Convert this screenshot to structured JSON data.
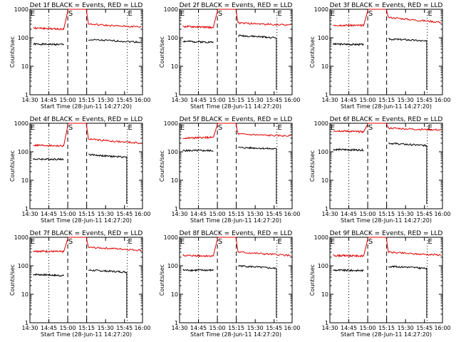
{
  "style": {
    "events_color": "#000000",
    "lld_color": "#e00000"
  },
  "y_ticks": [
    "1",
    "10",
    "100",
    "1000"
  ],
  "x_ticks": [
    "14:30",
    "14:45",
    "15:00",
    "15:15",
    "15:30",
    "15:45",
    "16:00"
  ],
  "marker_labels": [
    "E",
    "S",
    "E"
  ],
  "chart_data": [
    {
      "type": "line",
      "title": "Det 1f BLACK = Events, RED = LLD",
      "xlabel": "Start Time (28-Jun-11 14:27:20)",
      "ylabel": "Counts/sec",
      "y_scale": "log",
      "ylim": [
        1,
        1000
      ],
      "x": [
        "14:30",
        "14:45",
        "15:00",
        "15:15",
        "15:30",
        "15:45",
        "16:00"
      ],
      "series": [
        {
          "name": "Events",
          "color": "#000000",
          "values": [
            60,
            58,
            null,
            85,
            78,
            70,
            55
          ]
        },
        {
          "name": "LLD",
          "color": "#e00000",
          "values": [
            220,
            200,
            900,
            300,
            260,
            240,
            220
          ]
        }
      ]
    },
    {
      "type": "line",
      "title": "Det 2f BLACK = Events, RED = LLD",
      "xlabel": "Start Time (28-Jun-11 14:27:20)",
      "ylabel": "Counts/sec",
      "y_scale": "log",
      "ylim": [
        1,
        1000
      ],
      "x": [
        "14:30",
        "14:45",
        "15:00",
        "15:15",
        "15:30",
        "15:45",
        "16:00"
      ],
      "series": [
        {
          "name": "Events",
          "color": "#000000",
          "values": [
            75,
            70,
            null,
            120,
            110,
            100,
            null
          ]
        },
        {
          "name": "LLD",
          "color": "#e00000",
          "values": [
            250,
            230,
            900,
            330,
            300,
            280,
            230
          ]
        }
      ]
    },
    {
      "type": "line",
      "title": "Det 3f BLACK = Events, RED = LLD",
      "xlabel": "Start Time (28-Jun-11 14:27:20)",
      "ylabel": "Counts/sec",
      "y_scale": "log",
      "ylim": [
        1,
        1000
      ],
      "x": [
        "14:30",
        "14:45",
        "15:00",
        "15:15",
        "15:30",
        "15:45",
        "16:00"
      ],
      "series": [
        {
          "name": "Events",
          "color": "#000000",
          "values": [
            60,
            58,
            null,
            90,
            85,
            75,
            null
          ]
        },
        {
          "name": "LLD",
          "color": "#e00000",
          "values": [
            280,
            270,
            900,
            520,
            420,
            350,
            300
          ]
        }
      ]
    },
    {
      "type": "line",
      "title": "Det 4f BLACK = Events, RED = LLD",
      "xlabel": "Start Time (28-Jun-11 14:27:20)",
      "ylabel": "Counts/sec",
      "y_scale": "log",
      "ylim": [
        1,
        1000
      ],
      "x": [
        "14:30",
        "14:45",
        "15:00",
        "15:15",
        "15:30",
        "15:45",
        "16:00"
      ],
      "series": [
        {
          "name": "Events",
          "color": "#000000",
          "values": [
            55,
            55,
            null,
            80,
            70,
            65,
            null
          ]
        },
        {
          "name": "LLD",
          "color": "#e00000",
          "values": [
            170,
            160,
            900,
            280,
            230,
            200,
            180
          ]
        }
      ]
    },
    {
      "type": "line",
      "title": "Det 5f BLACK = Events, RED = LLD",
      "xlabel": "Start Time (28-Jun-11 14:27:20)",
      "ylabel": "Counts/sec",
      "y_scale": "log",
      "ylim": [
        1,
        1000
      ],
      "x": [
        "14:30",
        "14:45",
        "15:00",
        "15:15",
        "15:30",
        "15:45",
        "16:00"
      ],
      "series": [
        {
          "name": "Events",
          "color": "#000000",
          "values": [
            110,
            110,
            null,
            140,
            135,
            125,
            null
          ]
        },
        {
          "name": "LLD",
          "color": "#e00000",
          "values": [
            300,
            320,
            900,
            420,
            380,
            360,
            300
          ]
        }
      ]
    },
    {
      "type": "line",
      "title": "Det 6f BLACK = Events, RED = LLD",
      "xlabel": "Start Time (28-Jun-11 14:27:20)",
      "ylabel": "Counts/sec",
      "y_scale": "log",
      "ylim": [
        1,
        1000
      ],
      "x": [
        "14:30",
        "14:45",
        "15:00",
        "15:15",
        "15:30",
        "15:45",
        "16:00"
      ],
      "series": [
        {
          "name": "Events",
          "color": "#000000",
          "values": [
            120,
            115,
            null,
            200,
            180,
            165,
            null
          ]
        },
        {
          "name": "LLD",
          "color": "#e00000",
          "values": [
            550,
            500,
            900,
            680,
            620,
            580,
            530
          ]
        }
      ]
    },
    {
      "type": "line",
      "title": "Det 7f BLACK = Events, RED = LLD",
      "xlabel": "Start Time (28-Jun-11 14:27:20)",
      "ylabel": "Counts/sec",
      "y_scale": "log",
      "ylim": [
        1,
        1000
      ],
      "x": [
        "14:30",
        "14:45",
        "15:00",
        "15:15",
        "15:30",
        "15:45",
        "16:00"
      ],
      "series": [
        {
          "name": "Events",
          "color": "#000000",
          "values": [
            50,
            45,
            null,
            70,
            65,
            60,
            null
          ]
        },
        {
          "name": "LLD",
          "color": "#e00000",
          "values": [
            330,
            310,
            900,
            440,
            400,
            350,
            320
          ]
        }
      ]
    },
    {
      "type": "line",
      "title": "Det 8f BLACK = Events, RED = LLD",
      "xlabel": "Start Time (28-Jun-11 14:27:20)",
      "ylabel": "Counts/sec",
      "y_scale": "log",
      "ylim": [
        1,
        1000
      ],
      "x": [
        "14:30",
        "14:45",
        "15:00",
        "15:15",
        "15:30",
        "15:45",
        "16:00"
      ],
      "series": [
        {
          "name": "Events",
          "color": "#000000",
          "values": [
            70,
            70,
            null,
            100,
            90,
            80,
            null
          ]
        },
        {
          "name": "LLD",
          "color": "#e00000",
          "values": [
            230,
            220,
            900,
            300,
            260,
            230,
            210
          ]
        }
      ]
    },
    {
      "type": "line",
      "title": "Det 9f BLACK = Events, RED = LLD",
      "xlabel": "Start Time (28-Jun-11 14:27:20)",
      "ylabel": "Counts/sec",
      "y_scale": "log",
      "ylim": [
        1,
        1000
      ],
      "x": [
        "14:30",
        "14:45",
        "15:00",
        "15:15",
        "15:30",
        "15:45",
        "16:00"
      ],
      "series": [
        {
          "name": "Events",
          "color": "#000000",
          "values": [
            70,
            68,
            null,
            95,
            90,
            80,
            null
          ]
        },
        {
          "name": "LLD",
          "color": "#e00000",
          "values": [
            230,
            220,
            900,
            300,
            260,
            240,
            220
          ]
        }
      ]
    }
  ]
}
